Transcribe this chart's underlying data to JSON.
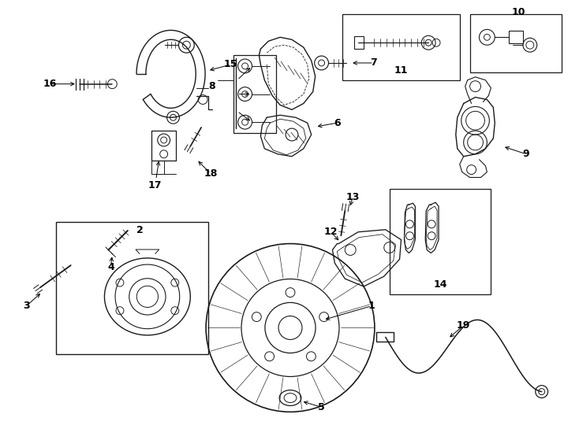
{
  "bg_color": "#ffffff",
  "line_color": "#1a1a1a",
  "figsize": [
    7.34,
    5.4
  ],
  "dpi": 100
}
